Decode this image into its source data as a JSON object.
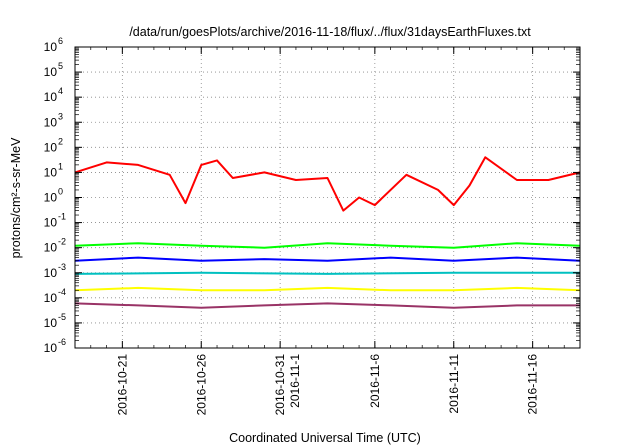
{
  "chart_data": {
    "type": "line",
    "title": "/data/run/goesPlots/archive/2016-11-18/flux/../flux/31daysEarthFluxes.txt",
    "xlabel": "Coordinated Universal Time (UTC)",
    "ylabel": "protons/cm²-s-sr-MeV",
    "yscale": "log",
    "ylim": [
      1e-06,
      1000000.0
    ],
    "grid": true,
    "legend": "none",
    "xlim": [
      "2016-10-18",
      "2016-11-19"
    ],
    "x_ticks": [
      {
        "date": "2016-10-21",
        "label": [
          "2016-10-21"
        ]
      },
      {
        "date": "2016-10-26",
        "label": [
          "2016-10-26"
        ]
      },
      {
        "date": "2016-10-31",
        "label": [
          "2016-10-31",
          "2016-11-1"
        ]
      },
      {
        "date": "2016-11-06",
        "label": [
          "2016-11-6"
        ]
      },
      {
        "date": "2016-11-11",
        "label": [
          "2016-11-11"
        ]
      },
      {
        "date": "2016-11-16",
        "label": [
          "2016-11-16"
        ]
      }
    ],
    "y_ticks": [
      {
        "value": 1e-06,
        "mantissa": "10",
        "exp": "-6"
      },
      {
        "value": 1e-05,
        "mantissa": "10",
        "exp": "-5"
      },
      {
        "value": 0.0001,
        "mantissa": "10",
        "exp": "-4"
      },
      {
        "value": 0.001,
        "mantissa": "10",
        "exp": "-3"
      },
      {
        "value": 0.01,
        "mantissa": "10",
        "exp": "-2"
      },
      {
        "value": 0.1,
        "mantissa": "10",
        "exp": "-1"
      },
      {
        "value": 1,
        "mantissa": "10",
        "exp": "0"
      },
      {
        "value": 10,
        "mantissa": "10",
        "exp": "1"
      },
      {
        "value": 100,
        "mantissa": "10",
        "exp": "2"
      },
      {
        "value": 1000,
        "mantissa": "10",
        "exp": "3"
      },
      {
        "value": 10000,
        "mantissa": "10",
        "exp": "4"
      },
      {
        "value": 100000,
        "mantissa": "10",
        "exp": "5"
      },
      {
        "value": 1000000,
        "mantissa": "10",
        "exp": "6"
      }
    ],
    "series": [
      {
        "color": "#ff0000",
        "x": [
          "2016-10-18",
          "2016-10-20",
          "2016-10-22",
          "2016-10-24",
          "2016-10-25",
          "2016-10-26",
          "2016-10-27",
          "2016-10-28",
          "2016-10-30",
          "2016-11-01",
          "2016-11-03",
          "2016-11-04",
          "2016-11-05",
          "2016-11-06",
          "2016-11-08",
          "2016-11-10",
          "2016-11-11",
          "2016-11-12",
          "2016-11-13",
          "2016-11-15",
          "2016-11-17",
          "2016-11-19"
        ],
        "values": [
          10,
          25,
          20,
          8,
          0.6,
          20,
          30,
          6,
          10,
          5,
          6,
          0.3,
          1,
          0.5,
          8,
          2,
          0.5,
          3,
          40,
          5,
          5,
          10
        ]
      },
      {
        "color": "#00ff00",
        "x": [
          "2016-10-18",
          "2016-10-22",
          "2016-10-26",
          "2016-10-30",
          "2016-11-03",
          "2016-11-07",
          "2016-11-11",
          "2016-11-15",
          "2016-11-19"
        ],
        "values": [
          0.012,
          0.015,
          0.012,
          0.01,
          0.015,
          0.012,
          0.01,
          0.015,
          0.012
        ]
      },
      {
        "color": "#0000ff",
        "x": [
          "2016-10-18",
          "2016-10-22",
          "2016-10-26",
          "2016-10-30",
          "2016-11-03",
          "2016-11-07",
          "2016-11-11",
          "2016-11-15",
          "2016-11-19"
        ],
        "values": [
          0.003,
          0.004,
          0.003,
          0.0035,
          0.003,
          0.004,
          0.003,
          0.004,
          0.003
        ]
      },
      {
        "color": "#00c0c0",
        "x": [
          "2016-10-18",
          "2016-10-26",
          "2016-11-03",
          "2016-11-11",
          "2016-11-19"
        ],
        "values": [
          0.0009,
          0.001,
          0.0009,
          0.001,
          0.001
        ]
      },
      {
        "color": "#ffff00",
        "x": [
          "2016-10-18",
          "2016-10-22",
          "2016-10-26",
          "2016-10-30",
          "2016-11-03",
          "2016-11-07",
          "2016-11-11",
          "2016-11-15",
          "2016-11-19"
        ],
        "values": [
          0.0002,
          0.00025,
          0.0002,
          0.0002,
          0.00025,
          0.0002,
          0.0002,
          0.00025,
          0.0002
        ]
      },
      {
        "color": "#993366",
        "x": [
          "2016-10-18",
          "2016-10-22",
          "2016-10-26",
          "2016-10-30",
          "2016-11-03",
          "2016-11-07",
          "2016-11-11",
          "2016-11-15",
          "2016-11-19"
        ],
        "values": [
          6e-05,
          5e-05,
          4e-05,
          5e-05,
          6e-05,
          5e-05,
          4e-05,
          5e-05,
          5e-05
        ]
      }
    ]
  }
}
